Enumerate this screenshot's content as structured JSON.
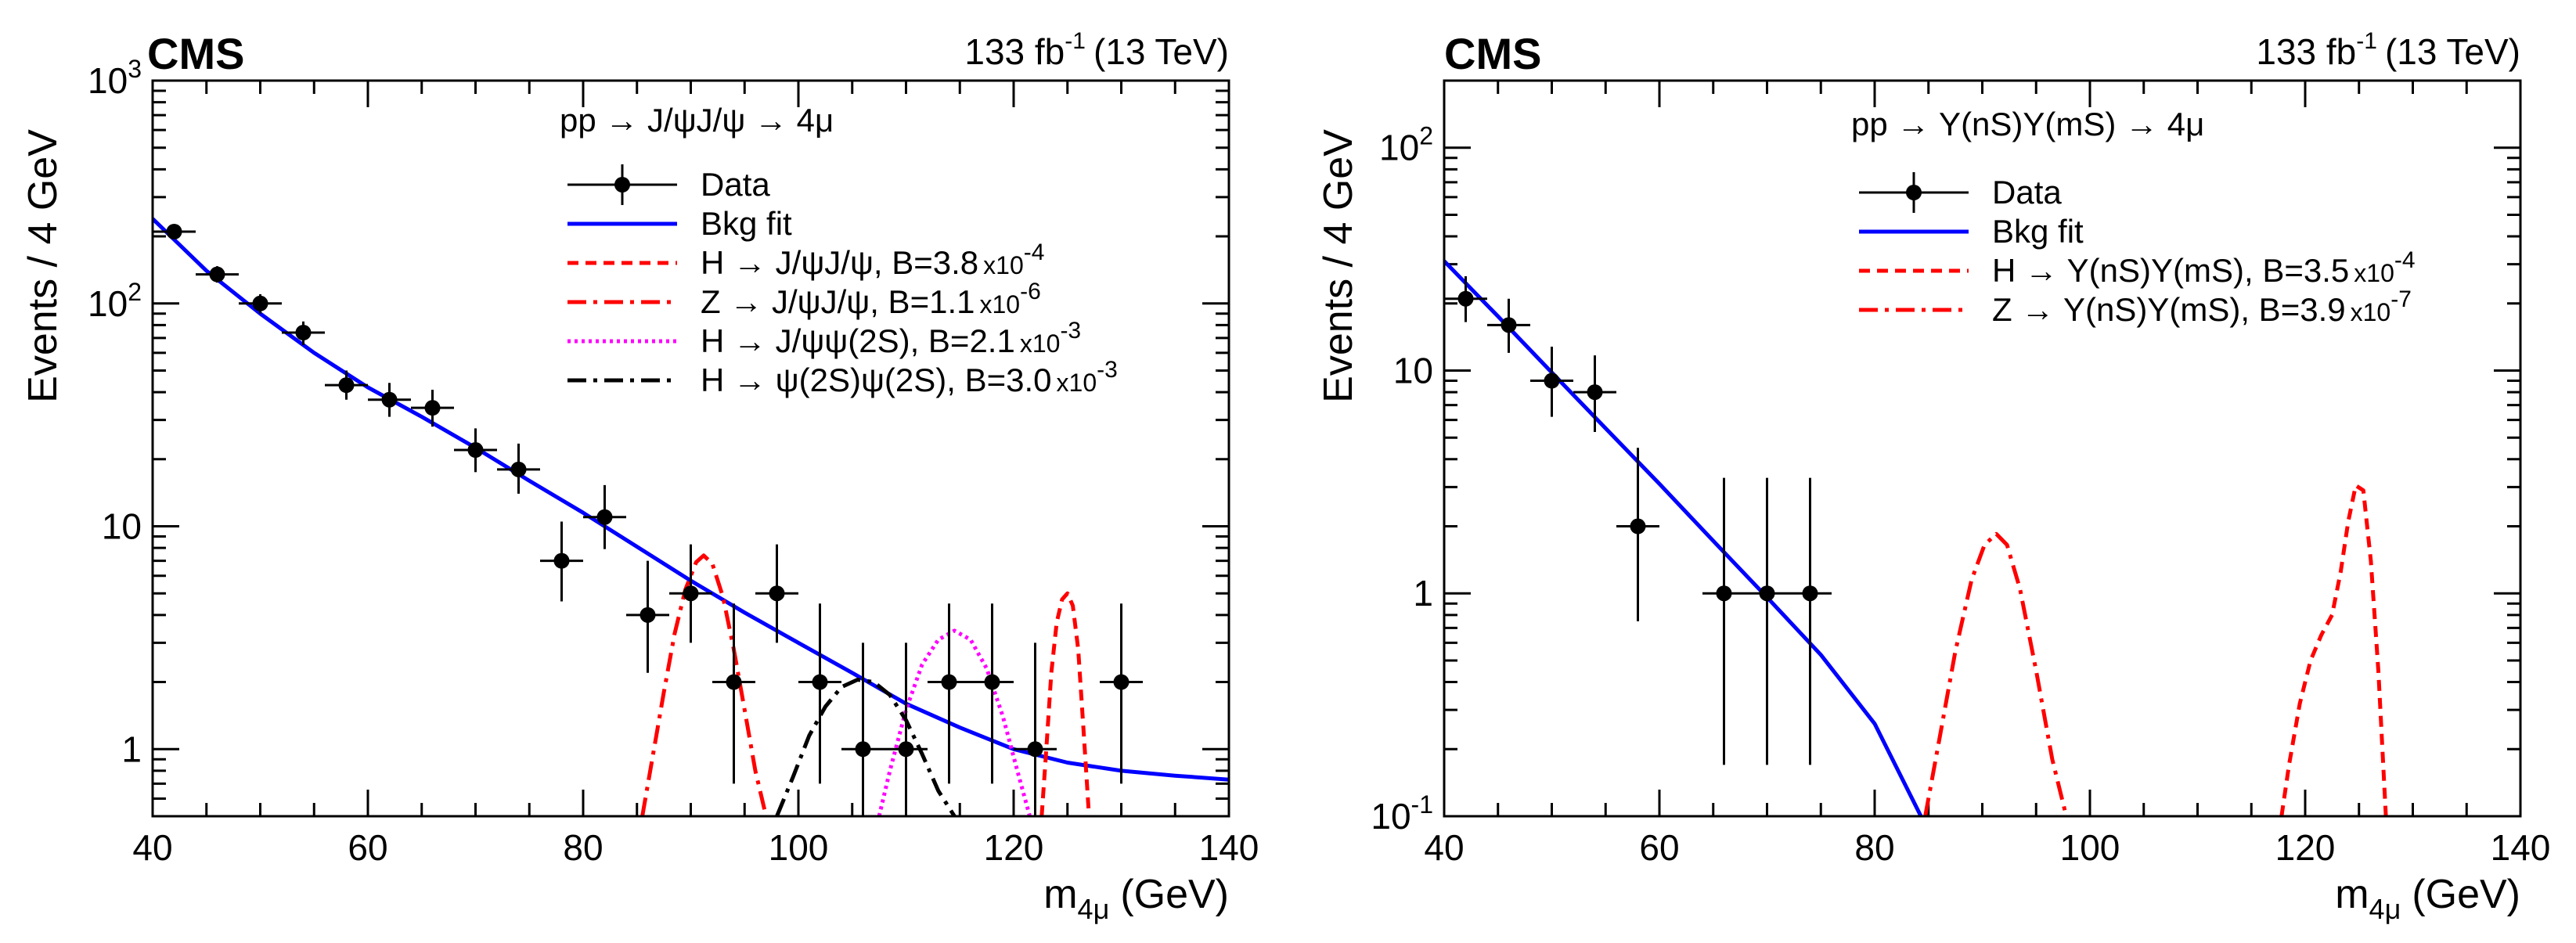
{
  "chart_data": [
    {
      "type": "line",
      "experiment": "CMS",
      "luminosity": "133 fb",
      "luminosity_sup": "-1",
      "energy": "(13 TeV)",
      "xlabel_main": "m",
      "xlabel_sub": "4μ",
      "xlabel_unit": "(GeV)",
      "ylabel": "Events / 4 GeV",
      "xlim": [
        40,
        140
      ],
      "ylim": [
        0.5,
        1000
      ],
      "yscale": "log",
      "xticks": [
        40,
        60,
        80,
        100,
        120,
        140
      ],
      "yticks": [
        {
          "value": 1,
          "label": "1",
          "sup": ""
        },
        {
          "value": 10,
          "label": "10",
          "sup": ""
        },
        {
          "value": 100,
          "label": "10",
          "sup": "2"
        },
        {
          "value": 1000,
          "label": "10",
          "sup": "3"
        }
      ],
      "legend_header": "pp → J/ψJ/ψ → 4μ",
      "legend": [
        {
          "label": "Data",
          "style": "data",
          "color": "#000000"
        },
        {
          "label": "Bkg fit",
          "style": "solid",
          "color": "#0000ff"
        },
        {
          "label": "H → J/ψJ/ψ, B=3.8",
          "exp": "-4",
          "style": "dashed",
          "color": "#ff0000"
        },
        {
          "label": "Z → J/ψJ/ψ, B=1.1",
          "exp": "-6",
          "style": "dashdot",
          "color": "#ff0000"
        },
        {
          "label": "H → J/ψψ(2S), B=2.1",
          "exp": "-3",
          "style": "dotted",
          "color": "#ff00ff"
        },
        {
          "label": "H → ψ(2S)ψ(2S), B=3.0",
          "exp": "-3",
          "style": "dashdot",
          "color": "#000000"
        }
      ],
      "data_points": [
        {
          "x": 42,
          "y": 210,
          "lo": 195,
          "hi": 225
        },
        {
          "x": 46,
          "y": 135,
          "lo": 124,
          "hi": 147
        },
        {
          "x": 50,
          "y": 100,
          "lo": 90,
          "hi": 110
        },
        {
          "x": 54,
          "y": 74,
          "lo": 65,
          "hi": 83
        },
        {
          "x": 58,
          "y": 43,
          "lo": 37,
          "hi": 50
        },
        {
          "x": 62,
          "y": 37,
          "lo": 31,
          "hi": 44
        },
        {
          "x": 66,
          "y": 34,
          "lo": 28,
          "hi": 41
        },
        {
          "x": 70,
          "y": 22,
          "lo": 17.5,
          "hi": 27.5
        },
        {
          "x": 74,
          "y": 18,
          "lo": 14,
          "hi": 23.5
        },
        {
          "x": 78,
          "y": 7,
          "lo": 4.6,
          "hi": 10.5
        },
        {
          "x": 82,
          "y": 11,
          "lo": 7.9,
          "hi": 15.3
        },
        {
          "x": 86,
          "y": 4,
          "lo": 2.2,
          "hi": 7.0
        },
        {
          "x": 90,
          "y": 5,
          "lo": 3.0,
          "hi": 8.3
        },
        {
          "x": 94,
          "y": 2,
          "lo": 0.7,
          "hi": 4.5
        },
        {
          "x": 98,
          "y": 5,
          "lo": 3.0,
          "hi": 8.3
        },
        {
          "x": 102,
          "y": 2,
          "lo": 0.7,
          "hi": 4.5
        },
        {
          "x": 106,
          "y": 1,
          "lo": 0.5,
          "hi": 3.0
        },
        {
          "x": 110,
          "y": 1,
          "lo": 0.5,
          "hi": 3.0
        },
        {
          "x": 114,
          "y": 2,
          "lo": 0.7,
          "hi": 4.5
        },
        {
          "x": 118,
          "y": 2,
          "lo": 0.7,
          "hi": 4.5
        },
        {
          "x": 122,
          "y": 1,
          "lo": 0.5,
          "hi": 3.0
        },
        {
          "x": 130,
          "y": 2,
          "lo": 0.7,
          "hi": 4.5
        }
      ],
      "series": [
        {
          "name": "Bkg fit",
          "color": "#0000ff",
          "style": "solid",
          "x": [
            40,
            45,
            50,
            55,
            60,
            65,
            70,
            75,
            80,
            85,
            90,
            95,
            100,
            105,
            110,
            115,
            120,
            125,
            130,
            135,
            140
          ],
          "y": [
            240,
            140,
            90,
            60,
            42,
            31,
            22.5,
            16,
            11.5,
            8.1,
            5.7,
            4.1,
            3.0,
            2.2,
            1.6,
            1.25,
            1.0,
            0.87,
            0.8,
            0.76,
            0.73
          ]
        },
        {
          "name": "H → J/ψJ/ψ",
          "color": "#ff0000",
          "style": "dashed",
          "x": [
            122.6,
            123,
            123.5,
            124,
            124.5,
            125,
            125.5,
            126,
            126.5,
            127
          ],
          "y": [
            0.5,
            0.95,
            2.2,
            3.7,
            4.7,
            5.0,
            4.4,
            2.8,
            1.2,
            0.5
          ]
        },
        {
          "name": "Z → J/ψJ/ψ",
          "color": "#ff0000",
          "style": "dashdot",
          "x": [
            85.5,
            86.5,
            87.5,
            88.5,
            89.5,
            90.5,
            91.2,
            92,
            93,
            94,
            95,
            96,
            97
          ],
          "y": [
            0.5,
            0.95,
            1.8,
            3.3,
            5.2,
            6.9,
            7.4,
            6.8,
            4.8,
            2.8,
            1.5,
            0.8,
            0.5
          ]
        },
        {
          "name": "H → J/ψψ(2S)",
          "color": "#ff00ff",
          "style": "dotted",
          "x": [
            107.5,
            108.5,
            110,
            111.5,
            113,
            114.5,
            116,
            117.5,
            119,
            120.5,
            121.5
          ],
          "y": [
            0.5,
            0.8,
            1.5,
            2.4,
            3.1,
            3.4,
            3.1,
            2.3,
            1.4,
            0.75,
            0.5
          ]
        },
        {
          "name": "H → ψ(2S)ψ(2S)",
          "color": "#000000",
          "style": "dashdot",
          "x": [
            98,
            99.5,
            101,
            102.5,
            104,
            105.5,
            107,
            108.5,
            110,
            111.5,
            113,
            114.5
          ],
          "y": [
            0.5,
            0.75,
            1.15,
            1.55,
            1.9,
            2.05,
            2.0,
            1.75,
            1.35,
            0.95,
            0.65,
            0.5
          ]
        }
      ]
    },
    {
      "type": "line",
      "experiment": "CMS",
      "luminosity": "133 fb",
      "luminosity_sup": "-1",
      "energy": "(13 TeV)",
      "xlabel_main": "m",
      "xlabel_sub": "4μ",
      "xlabel_unit": "(GeV)",
      "ylabel": "Events / 4 GeV",
      "xlim": [
        40,
        140
      ],
      "ylim": [
        0.1,
        200
      ],
      "yscale": "log",
      "xticks": [
        40,
        60,
        80,
        100,
        120,
        140
      ],
      "yticks": [
        {
          "value": 0.1,
          "label": "10",
          "sup": "-1"
        },
        {
          "value": 1,
          "label": "1",
          "sup": ""
        },
        {
          "value": 10,
          "label": "10",
          "sup": ""
        },
        {
          "value": 100,
          "label": "10",
          "sup": "2"
        }
      ],
      "legend_header": "pp → Υ(nS)Υ(mS) → 4μ",
      "legend": [
        {
          "label": "Data",
          "style": "data",
          "color": "#000000"
        },
        {
          "label": "Bkg fit",
          "style": "solid",
          "color": "#0000ff"
        },
        {
          "label": "H → Υ(nS)Υ(mS), B=3.5",
          "exp": "-4",
          "style": "dashed",
          "color": "#ff0000"
        },
        {
          "label": "Z → Υ(nS)Υ(mS), B=3.9",
          "exp": "-7",
          "style": "dashdot",
          "color": "#ff0000"
        }
      ],
      "data_points": [
        {
          "x": 42,
          "y": 21,
          "lo": 16.5,
          "hi": 26.5
        },
        {
          "x": 46,
          "y": 16,
          "lo": 12,
          "hi": 21
        },
        {
          "x": 50,
          "y": 9,
          "lo": 6.2,
          "hi": 12.8
        },
        {
          "x": 54,
          "y": 8,
          "lo": 5.3,
          "hi": 11.7
        },
        {
          "x": 58,
          "y": 2,
          "lo": 0.75,
          "hi": 4.5
        },
        {
          "x": 66,
          "y": 1,
          "lo": 0.17,
          "hi": 3.3
        },
        {
          "x": 70,
          "y": 1,
          "lo": 0.17,
          "hi": 3.3
        },
        {
          "x": 74,
          "y": 1,
          "lo": 0.17,
          "hi": 3.3
        }
      ],
      "series": [
        {
          "name": "Bkg fit",
          "color": "#0000ff",
          "style": "solid",
          "x": [
            40,
            45,
            50,
            55,
            60,
            65,
            70,
            75,
            80,
            84.3
          ],
          "y": [
            31,
            17.5,
            9.8,
            5.5,
            3.1,
            1.72,
            0.96,
            0.53,
            0.26,
            0.1
          ]
        },
        {
          "name": "H → Υ(nS)Υ(mS)",
          "color": "#ff0000",
          "style": "dashed",
          "x": [
            117.8,
            118.5,
            119.5,
            120.5,
            121.5,
            122.5,
            123.3,
            124,
            124.7,
            125.4,
            126.1,
            126.8,
            127.5
          ],
          "y": [
            0.1,
            0.17,
            0.32,
            0.5,
            0.65,
            0.8,
            1.25,
            2.1,
            3.05,
            2.9,
            1.4,
            0.45,
            0.1
          ]
        },
        {
          "name": "Z → Υ(nS)Υ(mS)",
          "color": "#ff0000",
          "style": "dashdot",
          "x": [
            84.7,
            86,
            87.5,
            89,
            90.2,
            91.3,
            92.3,
            93.5,
            95,
            96.5,
            97.8
          ],
          "y": [
            0.1,
            0.22,
            0.55,
            1.15,
            1.65,
            1.85,
            1.65,
            1.05,
            0.45,
            0.18,
            0.1
          ]
        }
      ]
    }
  ]
}
